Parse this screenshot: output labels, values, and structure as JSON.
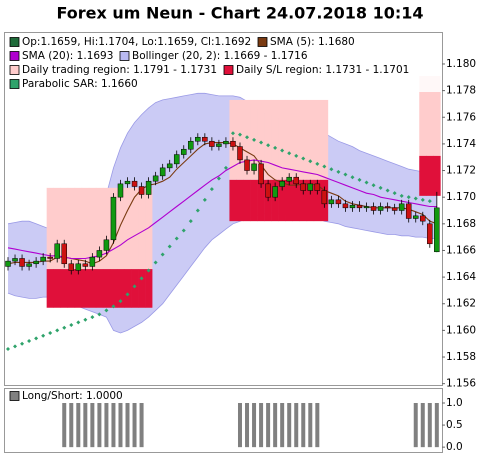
{
  "chart_data": [
    {
      "type": "candlestick",
      "title": "Forex um Neun - Chart 24.07.2018 10:14",
      "ylim": [
        1.1559,
        1.1824
      ],
      "yticks": [
        1.156,
        1.158,
        {
          "value": 1.16,
          "label": "1.160"
        },
        1.162,
        1.164,
        1.166,
        1.168,
        {
          "value": 1.17,
          "label": "1.170"
        },
        1.172,
        1.174,
        1.176,
        1.178,
        {
          "value": 1.18,
          "label": "1.180"
        }
      ],
      "candles": {
        "name": "Op:1.1659, Hi:1.1704, Lo:1.1659, Cl:1.1692",
        "color": "#1f6b3a",
        "color_up": "#119911",
        "color_down": "#cc1111",
        "open": [
          1.1648,
          1.1652,
          1.1654,
          1.1648,
          1.165,
          1.1652,
          1.1655,
          1.1654,
          1.1665,
          1.165,
          1.1645,
          1.165,
          1.1648,
          1.1655,
          1.166,
          1.1668,
          1.17,
          1.171,
          1.1712,
          1.1708,
          1.1702,
          1.1712,
          1.1716,
          1.1722,
          1.1725,
          1.1732,
          1.1736,
          1.1742,
          1.1745,
          1.1742,
          1.1738,
          1.174,
          1.1742,
          1.1738,
          1.1728,
          1.172,
          1.1725,
          1.171,
          1.17,
          1.1708,
          1.1712,
          1.1715,
          1.171,
          1.1705,
          1.171,
          1.1705,
          1.1695,
          1.1698,
          1.1695,
          1.1692,
          1.1694,
          1.1692,
          1.1693,
          1.169,
          1.1693,
          1.1692,
          1.169,
          1.1695,
          1.1684,
          1.1686,
          1.168,
          1.1659
        ],
        "high": [
          1.1655,
          1.1657,
          1.1657,
          1.1653,
          1.1655,
          1.1658,
          1.1658,
          1.1668,
          1.1668,
          1.1653,
          1.1653,
          1.1653,
          1.1658,
          1.1663,
          1.1671,
          1.1703,
          1.1713,
          1.1715,
          1.1715,
          1.1711,
          1.1715,
          1.1719,
          1.1725,
          1.1728,
          1.1735,
          1.1739,
          1.1745,
          1.1748,
          1.1748,
          1.1745,
          1.1743,
          1.1745,
          1.1745,
          1.1741,
          1.1731,
          1.1728,
          1.1728,
          1.1713,
          1.1711,
          1.1715,
          1.1718,
          1.1718,
          1.1713,
          1.1713,
          1.1713,
          1.1708,
          1.1701,
          1.1701,
          1.1698,
          1.1697,
          1.1697,
          1.1696,
          1.1696,
          1.1696,
          1.1696,
          1.1695,
          1.1698,
          1.1698,
          1.1689,
          1.1689,
          1.1683,
          1.1704
        ],
        "low": [
          1.1645,
          1.1649,
          1.1645,
          1.1645,
          1.1647,
          1.1649,
          1.1651,
          1.1651,
          1.1647,
          1.1642,
          1.1642,
          1.1645,
          1.1645,
          1.1652,
          1.1657,
          1.1665,
          1.1697,
          1.1707,
          1.1705,
          1.1699,
          1.1699,
          1.1709,
          1.1713,
          1.1719,
          1.1722,
          1.1729,
          1.1733,
          1.1739,
          1.1739,
          1.1735,
          1.1735,
          1.1737,
          1.1735,
          1.1725,
          1.1717,
          1.1717,
          1.1707,
          1.1697,
          1.1697,
          1.1705,
          1.1709,
          1.1707,
          1.1702,
          1.1702,
          1.1702,
          1.1692,
          1.1692,
          1.1692,
          1.1689,
          1.1689,
          1.1689,
          1.1689,
          1.1687,
          1.1687,
          1.1689,
          1.1687,
          1.1687,
          1.1681,
          1.1681,
          1.1679,
          1.1662,
          1.1659
        ],
        "close": [
          1.1652,
          1.1654,
          1.1648,
          1.165,
          1.1652,
          1.1655,
          1.1654,
          1.1665,
          1.165,
          1.1645,
          1.165,
          1.1648,
          1.1655,
          1.166,
          1.1668,
          1.17,
          1.171,
          1.1712,
          1.1708,
          1.1702,
          1.1712,
          1.1716,
          1.1722,
          1.1725,
          1.1732,
          1.1736,
          1.1742,
          1.1745,
          1.1742,
          1.1738,
          1.174,
          1.1742,
          1.1738,
          1.1728,
          1.172,
          1.1725,
          1.171,
          1.17,
          1.1708,
          1.1712,
          1.1715,
          1.171,
          1.1705,
          1.171,
          1.1705,
          1.1695,
          1.1698,
          1.1695,
          1.1692,
          1.1694,
          1.1692,
          1.1693,
          1.169,
          1.1693,
          1.1692,
          1.169,
          1.1695,
          1.1684,
          1.1686,
          1.1682,
          1.1665,
          1.1692
        ]
      },
      "lines": [
        {
          "name": "SMA (5): 1.1680",
          "color": "#7a3b12",
          "values": [
            1.165,
            1.1651,
            1.1651,
            1.1651,
            1.1651,
            1.1652,
            1.1652,
            1.1655,
            1.1655,
            1.1654,
            1.1653,
            1.1652,
            1.165,
            1.1652,
            1.1656,
            1.1666,
            1.1679,
            1.169,
            1.17,
            1.1706,
            1.1709,
            1.171,
            1.1712,
            1.1715,
            1.1721,
            1.1726,
            1.1731,
            1.1736,
            1.174,
            1.1741,
            1.1741,
            1.1741,
            1.174,
            1.1737,
            1.1734,
            1.1731,
            1.1724,
            1.1717,
            1.1713,
            1.1711,
            1.1709,
            1.1709,
            1.171,
            1.171,
            1.1709,
            1.1705,
            1.1703,
            1.1701,
            1.1697,
            1.1695,
            1.1694,
            1.1693,
            1.1692,
            1.1692,
            1.1692,
            1.1692,
            1.1692,
            1.1691,
            1.1689,
            1.1687,
            1.1682,
            1.168
          ]
        },
        {
          "name": "SMA (20): 1.1693",
          "color": "#b000d0",
          "values": [
            1.1662,
            1.1661,
            1.166,
            1.1659,
            1.1658,
            1.1657,
            1.1656,
            1.1656,
            1.1655,
            1.1654,
            1.1654,
            1.1654,
            1.1655,
            1.1656,
            1.1658,
            1.1661,
            1.1664,
            1.1668,
            1.1671,
            1.1674,
            1.1677,
            1.1681,
            1.1685,
            1.1689,
            1.1693,
            1.1697,
            1.1701,
            1.1705,
            1.1709,
            1.1713,
            1.1716,
            1.172,
            1.1723,
            1.1726,
            1.1727,
            1.1728,
            1.1727,
            1.1726,
            1.1724,
            1.1722,
            1.1721,
            1.172,
            1.1719,
            1.1718,
            1.1717,
            1.1715,
            1.1713,
            1.1711,
            1.1709,
            1.1707,
            1.1705,
            1.1703,
            1.1702,
            1.17,
            1.1699,
            1.1698,
            1.1697,
            1.1696,
            1.1695,
            1.1694,
            1.1693,
            1.1693
          ]
        }
      ],
      "band": {
        "name": "Bollinger (20, 2): 1.1669 - 1.1716",
        "color": "#b9b9f2",
        "upper": [
          1.168,
          1.1681,
          1.1682,
          1.1682,
          1.168,
          1.1678,
          1.1676,
          1.1677,
          1.1678,
          1.1679,
          1.1681,
          1.1684,
          1.1688,
          1.1694,
          1.1702,
          1.1722,
          1.1737,
          1.1748,
          1.1756,
          1.1762,
          1.1767,
          1.1771,
          1.1773,
          1.1774,
          1.1775,
          1.1776,
          1.1777,
          1.1778,
          1.1778,
          1.1777,
          1.1776,
          1.1776,
          1.1776,
          1.1775,
          1.1772,
          1.1768,
          1.1764,
          1.1762,
          1.176,
          1.1758,
          1.1757,
          1.1756,
          1.1754,
          1.1752,
          1.175,
          1.1748,
          1.1745,
          1.1742,
          1.174,
          1.1738,
          1.1735,
          1.1733,
          1.1731,
          1.1729,
          1.1727,
          1.1725,
          1.1723,
          1.1721,
          1.172,
          1.1719,
          1.1718,
          1.1716
        ],
        "lower": [
          1.1628,
          1.1626,
          1.1625,
          1.1624,
          1.1624,
          1.1625,
          1.1625,
          1.1624,
          1.1622,
          1.162,
          1.1618,
          1.1616,
          1.1614,
          1.1612,
          1.161,
          1.16,
          1.1598,
          1.16,
          1.1603,
          1.1606,
          1.161,
          1.1615,
          1.162,
          1.1627,
          1.1634,
          1.1641,
          1.1648,
          1.1655,
          1.1662,
          1.1668,
          1.1672,
          1.1676,
          1.168,
          1.1682,
          1.1684,
          1.1685,
          1.1687,
          1.1688,
          1.1688,
          1.1687,
          1.1686,
          1.1685,
          1.1684,
          1.1684,
          1.1684,
          1.1682,
          1.1681,
          1.168,
          1.1678,
          1.1677,
          1.1676,
          1.1675,
          1.1674,
          1.1673,
          1.1672,
          1.1672,
          1.1671,
          1.1671,
          1.167,
          1.167,
          1.1669,
          1.1669
        ]
      },
      "regions": [
        {
          "name": "Daily trading region: 1.1791 - 1.1731",
          "color": "#ffcccc",
          "top": [
            null,
            null,
            null,
            null,
            null,
            null,
            1.1707,
            1.1707,
            1.1707,
            1.1707,
            1.1707,
            1.1707,
            1.1707,
            1.1707,
            1.1707,
            1.1707,
            1.1707,
            1.1707,
            1.1707,
            1.1707,
            1.1707,
            null,
            null,
            null,
            null,
            null,
            null,
            null,
            null,
            null,
            null,
            null,
            1.1773,
            1.1773,
            1.1773,
            1.1773,
            1.1773,
            1.1773,
            1.1773,
            1.1773,
            1.1773,
            1.1773,
            1.1773,
            1.1773,
            1.1773,
            1.1773,
            null,
            null,
            null,
            null,
            null,
            null,
            null,
            null,
            null,
            null,
            null,
            null,
            null,
            1.1791,
            1.1791,
            1.1791
          ],
          "bottom": [
            null,
            null,
            null,
            null,
            null,
            null,
            1.1646,
            1.1646,
            1.1646,
            1.1646,
            1.1646,
            1.1646,
            1.1646,
            1.1646,
            1.1646,
            1.1646,
            1.1646,
            1.1646,
            1.1646,
            1.1646,
            1.1646,
            null,
            null,
            null,
            null,
            null,
            null,
            null,
            null,
            null,
            null,
            null,
            1.1713,
            1.1713,
            1.1713,
            1.1713,
            1.1713,
            1.1713,
            1.1713,
            1.1713,
            1.1713,
            1.1713,
            1.1713,
            1.1713,
            1.1713,
            1.1713,
            null,
            null,
            null,
            null,
            null,
            null,
            null,
            null,
            null,
            null,
            null,
            null,
            null,
            1.1731,
            1.1731,
            1.1731
          ]
        },
        {
          "name": "Daily S/L region: 1.1731 - 1.1701",
          "color": "#e0103a",
          "top": [
            null,
            null,
            null,
            null,
            null,
            null,
            1.1646,
            1.1646,
            1.1646,
            1.1646,
            1.1646,
            1.1646,
            1.1646,
            1.1646,
            1.1646,
            1.1646,
            1.1646,
            1.1646,
            1.1646,
            1.1646,
            1.1646,
            null,
            null,
            null,
            null,
            null,
            null,
            null,
            null,
            null,
            null,
            null,
            1.1713,
            1.1713,
            1.1713,
            1.1713,
            1.1713,
            1.1713,
            1.1713,
            1.1713,
            1.1713,
            1.1713,
            1.1713,
            1.1713,
            1.1713,
            1.1713,
            null,
            null,
            null,
            null,
            null,
            null,
            null,
            null,
            null,
            null,
            null,
            null,
            null,
            1.1731,
            1.1731,
            1.1731
          ],
          "bottom": [
            null,
            null,
            null,
            null,
            null,
            null,
            1.1617,
            1.1617,
            1.1617,
            1.1617,
            1.1617,
            1.1617,
            1.1617,
            1.1617,
            1.1617,
            1.1617,
            1.1617,
            1.1617,
            1.1617,
            1.1617,
            1.1617,
            null,
            null,
            null,
            null,
            null,
            null,
            null,
            null,
            null,
            null,
            null,
            1.1682,
            1.1682,
            1.1682,
            1.1682,
            1.1682,
            1.1682,
            1.1682,
            1.1682,
            1.1682,
            1.1682,
            1.1682,
            1.1682,
            1.1682,
            1.1682,
            null,
            null,
            null,
            null,
            null,
            null,
            null,
            null,
            null,
            null,
            null,
            null,
            null,
            1.1701,
            1.1701,
            1.1701
          ]
        }
      ],
      "dots": {
        "name": "Parabolic SAR: 1.1660",
        "color": "#2fa36b",
        "values": [
          1.1586,
          1.1588,
          1.159,
          1.1592,
          1.1594,
          1.1596,
          1.1598,
          1.16,
          1.1602,
          1.1604,
          1.1606,
          1.1608,
          1.161,
          1.1612,
          1.1615,
          1.1618,
          1.1622,
          1.1627,
          1.1633,
          1.1639,
          1.1645,
          1.1651,
          1.1657,
          1.1663,
          1.1669,
          1.1675,
          1.1682,
          1.169,
          1.1698,
          1.1706,
          1.1714,
          1.1722,
          1.1748,
          1.1747,
          1.1745,
          1.1743,
          1.1741,
          1.1739,
          1.1737,
          1.1735,
          1.1733,
          1.1731,
          1.1729,
          1.1727,
          1.1725,
          1.1723,
          1.1721,
          1.1719,
          1.1717,
          1.1715,
          1.1713,
          1.1711,
          1.1709,
          1.1707,
          1.1705,
          1.1703,
          1.1701,
          1.17,
          1.1699,
          1.1698,
          1.1697,
          1.166
        ]
      }
    },
    {
      "type": "bar",
      "name": "Long/Short: 1.0000",
      "color": "#808080",
      "ylim": [
        -0.11,
        1.34
      ],
      "yticks": [
        {
          "value": 0,
          "label": "0.0"
        },
        {
          "value": 0.5,
          "label": "0.5"
        },
        {
          "value": 1,
          "label": "1.0"
        }
      ],
      "values": [
        0,
        0,
        0,
        0,
        0,
        0,
        0,
        0,
        1,
        1,
        1,
        1,
        1,
        1,
        1,
        1,
        1,
        1,
        1,
        1,
        0,
        0,
        0,
        0,
        0,
        0,
        0,
        0,
        0,
        0,
        0,
        0,
        0,
        1,
        1,
        1,
        1,
        1,
        1,
        1,
        1,
        1,
        1,
        1,
        1,
        0,
        0,
        0,
        0,
        0,
        0,
        0,
        0,
        0,
        0,
        0,
        0,
        0,
        1,
        1,
        1,
        1
      ]
    }
  ]
}
